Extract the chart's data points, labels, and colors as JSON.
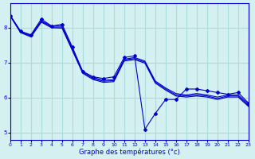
{
  "xlabel": "Graphe des températures (°c)",
  "background_color": "#d4f0f0",
  "line_color": "#0000cc",
  "grid_color": "#aadddd",
  "xlim": [
    0,
    23
  ],
  "ylim": [
    4.8,
    8.7
  ],
  "yticks": [
    5,
    6,
    7,
    8
  ],
  "xticks": [
    0,
    1,
    2,
    3,
    4,
    5,
    6,
    7,
    8,
    9,
    10,
    11,
    12,
    13,
    14,
    15,
    16,
    17,
    18,
    19,
    20,
    21,
    22,
    23
  ],
  "series_main": [
    8.35,
    7.9,
    7.8,
    8.25,
    8.05,
    8.1,
    7.45,
    6.75,
    6.6,
    6.55,
    6.6,
    7.15,
    7.2,
    5.1,
    5.55,
    5.95,
    5.95,
    6.25,
    6.25,
    6.2,
    6.15,
    6.1,
    6.15,
    5.85
  ],
  "series_smooth1": [
    8.35,
    7.9,
    7.78,
    8.2,
    8.05,
    8.05,
    7.4,
    6.75,
    6.58,
    6.5,
    6.52,
    7.1,
    7.15,
    7.05,
    6.48,
    6.28,
    6.12,
    6.08,
    6.12,
    6.08,
    6.02,
    6.08,
    6.08,
    5.82
  ],
  "series_smooth2": [
    8.35,
    7.88,
    7.76,
    8.18,
    8.02,
    8.02,
    7.38,
    6.72,
    6.55,
    6.47,
    6.49,
    7.08,
    7.12,
    7.02,
    6.45,
    6.25,
    6.08,
    6.05,
    6.08,
    6.05,
    5.98,
    6.05,
    6.05,
    5.78
  ],
  "series_smooth3": [
    8.33,
    7.86,
    7.74,
    8.16,
    8.0,
    7.99,
    7.35,
    6.7,
    6.52,
    6.44,
    6.46,
    7.05,
    7.09,
    6.99,
    6.42,
    6.22,
    6.05,
    6.02,
    6.05,
    6.02,
    5.95,
    6.02,
    6.02,
    5.75
  ]
}
